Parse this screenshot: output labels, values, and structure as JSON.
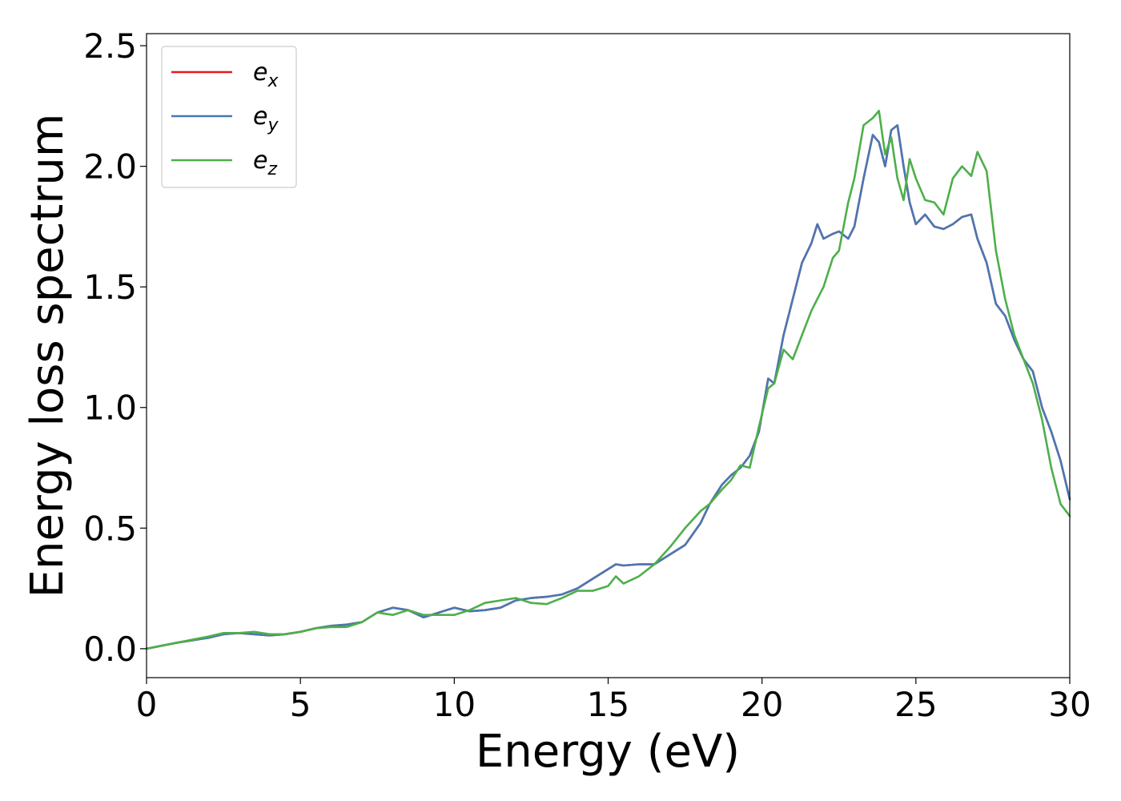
{
  "chart_data": {
    "type": "line",
    "xlabel": "Energy (eV)",
    "ylabel": "Energy loss spectrum",
    "xlim": [
      0,
      30
    ],
    "ylim": [
      -0.12,
      2.55
    ],
    "xticks": [
      0,
      5,
      10,
      15,
      20,
      25,
      30
    ],
    "xtick_labels": [
      "0",
      "5",
      "10",
      "15",
      "20",
      "25",
      "30"
    ],
    "yticks": [
      0.0,
      0.5,
      1.0,
      1.5,
      2.0,
      2.5
    ],
    "ytick_labels": [
      "0.0",
      "0.5",
      "1.0",
      "1.5",
      "2.0",
      "2.5"
    ],
    "grid": false,
    "legend_position": "top-left",
    "series": [
      {
        "name": "e_x",
        "label_base": "e",
        "label_sub": "x",
        "color": "#e41a1c",
        "x": [
          0,
          1,
          2,
          2.5,
          3,
          3.5,
          4,
          4.5,
          5,
          5.5,
          6,
          6.5,
          7,
          7.5,
          8,
          8.5,
          9,
          9.5,
          10,
          10.5,
          11,
          11.5,
          12,
          12.5,
          13,
          13.5,
          14,
          14.5,
          15,
          15.25,
          15.5,
          16,
          16.5,
          17,
          17.5,
          18,
          18.3,
          18.7,
          19,
          19.3,
          19.6,
          19.9,
          20.2,
          20.4,
          20.7,
          21,
          21.3,
          21.6,
          21.8,
          22,
          22.3,
          22.5,
          22.8,
          23,
          23.3,
          23.6,
          23.8,
          24,
          24.2,
          24.4,
          24.6,
          24.8,
          25,
          25.3,
          25.6,
          25.9,
          26.2,
          26.5,
          26.8,
          27,
          27.3,
          27.6,
          27.9,
          28.2,
          28.5,
          28.8,
          29.1,
          29.4,
          29.7,
          30
        ],
        "y": [
          0.0,
          0.025,
          0.045,
          0.06,
          0.065,
          0.06,
          0.055,
          0.06,
          0.07,
          0.085,
          0.095,
          0.1,
          0.11,
          0.15,
          0.17,
          0.16,
          0.13,
          0.15,
          0.17,
          0.155,
          0.16,
          0.17,
          0.2,
          0.21,
          0.215,
          0.225,
          0.25,
          0.29,
          0.33,
          0.35,
          0.345,
          0.35,
          0.35,
          0.39,
          0.43,
          0.52,
          0.6,
          0.68,
          0.72,
          0.75,
          0.8,
          0.9,
          1.12,
          1.1,
          1.3,
          1.45,
          1.6,
          1.68,
          1.76,
          1.7,
          1.72,
          1.73,
          1.7,
          1.75,
          1.95,
          2.13,
          2.1,
          2.0,
          2.15,
          2.17,
          2.0,
          1.85,
          1.76,
          1.8,
          1.75,
          1.74,
          1.76,
          1.79,
          1.8,
          1.7,
          1.6,
          1.43,
          1.38,
          1.28,
          1.2,
          1.15,
          1.0,
          0.9,
          0.78,
          0.62
        ]
      },
      {
        "name": "e_y",
        "label_base": "e",
        "label_sub": "y",
        "color": "#4878b4",
        "x": [
          0,
          1,
          2,
          2.5,
          3,
          3.5,
          4,
          4.5,
          5,
          5.5,
          6,
          6.5,
          7,
          7.5,
          8,
          8.5,
          9,
          9.5,
          10,
          10.5,
          11,
          11.5,
          12,
          12.5,
          13,
          13.5,
          14,
          14.5,
          15,
          15.25,
          15.5,
          16,
          16.5,
          17,
          17.5,
          18,
          18.3,
          18.7,
          19,
          19.3,
          19.6,
          19.9,
          20.2,
          20.4,
          20.7,
          21,
          21.3,
          21.6,
          21.8,
          22,
          22.3,
          22.5,
          22.8,
          23,
          23.3,
          23.6,
          23.8,
          24,
          24.2,
          24.4,
          24.6,
          24.8,
          25,
          25.3,
          25.6,
          25.9,
          26.2,
          26.5,
          26.8,
          27,
          27.3,
          27.6,
          27.9,
          28.2,
          28.5,
          28.8,
          29.1,
          29.4,
          29.7,
          30
        ],
        "y": [
          0.0,
          0.025,
          0.045,
          0.06,
          0.065,
          0.06,
          0.055,
          0.06,
          0.07,
          0.085,
          0.095,
          0.1,
          0.11,
          0.15,
          0.17,
          0.16,
          0.13,
          0.15,
          0.17,
          0.155,
          0.16,
          0.17,
          0.2,
          0.21,
          0.215,
          0.225,
          0.25,
          0.29,
          0.33,
          0.35,
          0.345,
          0.35,
          0.35,
          0.39,
          0.43,
          0.52,
          0.6,
          0.68,
          0.72,
          0.75,
          0.8,
          0.9,
          1.12,
          1.1,
          1.3,
          1.45,
          1.6,
          1.68,
          1.76,
          1.7,
          1.72,
          1.73,
          1.7,
          1.75,
          1.95,
          2.13,
          2.1,
          2.0,
          2.15,
          2.17,
          2.0,
          1.85,
          1.76,
          1.8,
          1.75,
          1.74,
          1.76,
          1.79,
          1.8,
          1.7,
          1.6,
          1.43,
          1.38,
          1.28,
          1.2,
          1.15,
          1.0,
          0.9,
          0.78,
          0.62
        ]
      },
      {
        "name": "e_z",
        "label_base": "e",
        "label_sub": "z",
        "color": "#4daf4a",
        "x": [
          0,
          1,
          2,
          2.5,
          3,
          3.5,
          4,
          4.5,
          5,
          5.5,
          6,
          6.5,
          7,
          7.5,
          8,
          8.5,
          9,
          9.5,
          10,
          10.5,
          11,
          11.5,
          12,
          12.5,
          13,
          13.5,
          14,
          14.5,
          15,
          15.25,
          15.5,
          16,
          16.5,
          17,
          17.5,
          18,
          18.3,
          18.7,
          19,
          19.3,
          19.6,
          19.9,
          20.2,
          20.4,
          20.7,
          21,
          21.3,
          21.6,
          21.8,
          22,
          22.3,
          22.5,
          22.8,
          23,
          23.3,
          23.6,
          23.8,
          24,
          24.2,
          24.4,
          24.6,
          24.8,
          25,
          25.3,
          25.6,
          25.9,
          26.2,
          26.5,
          26.8,
          27,
          27.3,
          27.6,
          27.9,
          28.2,
          28.5,
          28.8,
          29.1,
          29.4,
          29.7,
          30
        ],
        "y": [
          0.0,
          0.025,
          0.05,
          0.065,
          0.065,
          0.07,
          0.06,
          0.06,
          0.07,
          0.085,
          0.09,
          0.09,
          0.11,
          0.15,
          0.14,
          0.16,
          0.14,
          0.14,
          0.14,
          0.16,
          0.19,
          0.2,
          0.21,
          0.19,
          0.185,
          0.21,
          0.24,
          0.24,
          0.26,
          0.3,
          0.27,
          0.3,
          0.35,
          0.42,
          0.5,
          0.57,
          0.6,
          0.66,
          0.7,
          0.76,
          0.75,
          0.92,
          1.08,
          1.1,
          1.24,
          1.2,
          1.3,
          1.4,
          1.45,
          1.5,
          1.62,
          1.65,
          1.85,
          1.95,
          2.17,
          2.2,
          2.23,
          2.05,
          2.12,
          1.95,
          1.86,
          2.03,
          1.95,
          1.86,
          1.85,
          1.8,
          1.95,
          2.0,
          1.96,
          2.06,
          1.98,
          1.65,
          1.45,
          1.3,
          1.2,
          1.1,
          0.95,
          0.75,
          0.6,
          0.55
        ]
      }
    ]
  }
}
